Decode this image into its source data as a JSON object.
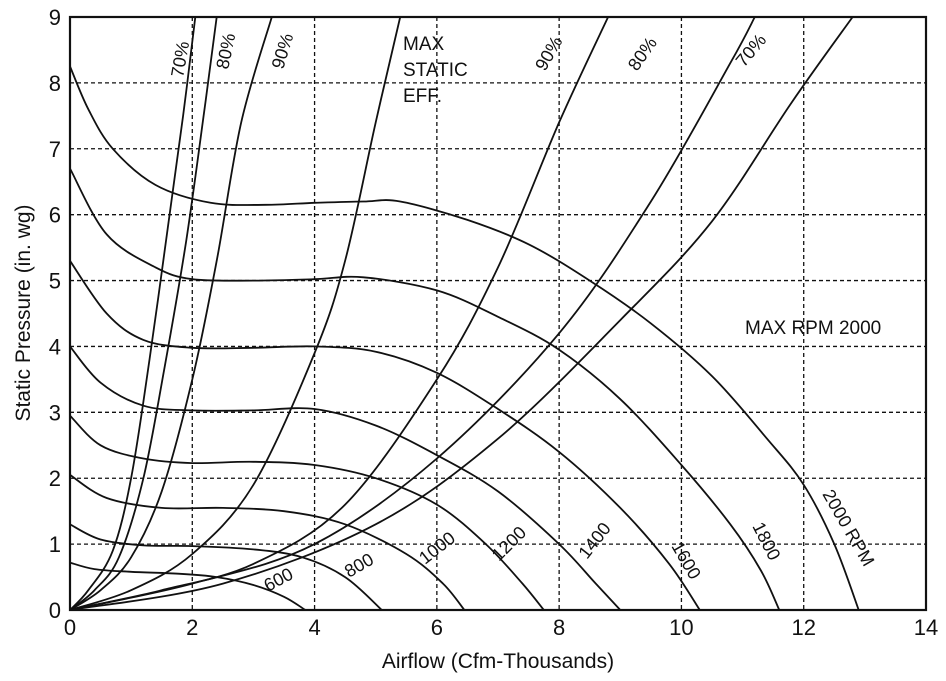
{
  "chart_data": {
    "type": "line",
    "xlabel": "Airflow (Cfm-Thousands)",
    "ylabel": "Static Pressure (in. wg)",
    "xlim": [
      0,
      14
    ],
    "ylim": [
      0,
      9
    ],
    "xticks": [
      "0",
      "2",
      "4",
      "6",
      "8",
      "10",
      "12",
      "14"
    ],
    "yticks": [
      "0",
      "1",
      "2",
      "3",
      "4",
      "5",
      "6",
      "7",
      "8",
      "9"
    ],
    "grid": true,
    "annotations": {
      "max_static_eff": [
        "MAX",
        "STATIC",
        "EFF."
      ],
      "max_rpm": "MAX RPM 2000"
    },
    "rpm_series": [
      {
        "name": "600",
        "points": [
          [
            0,
            0.72
          ],
          [
            0.4,
            0.62
          ],
          [
            1.0,
            0.58
          ],
          [
            1.8,
            0.55
          ],
          [
            2.4,
            0.5
          ],
          [
            3.0,
            0.38
          ],
          [
            3.5,
            0.2
          ],
          [
            3.85,
            0.0
          ]
        ]
      },
      {
        "name": "800",
        "points": [
          [
            0,
            1.3
          ],
          [
            0.5,
            1.07
          ],
          [
            1.2,
            0.98
          ],
          [
            2.0,
            0.97
          ],
          [
            3.0,
            0.92
          ],
          [
            3.8,
            0.8
          ],
          [
            4.5,
            0.5
          ],
          [
            5.1,
            0.0
          ]
        ]
      },
      {
        "name": "1000",
        "points": [
          [
            0,
            2.05
          ],
          [
            0.6,
            1.7
          ],
          [
            1.5,
            1.55
          ],
          [
            2.5,
            1.55
          ],
          [
            3.5,
            1.5
          ],
          [
            4.5,
            1.3
          ],
          [
            5.5,
            0.85
          ],
          [
            6.1,
            0.4
          ],
          [
            6.45,
            0.0
          ]
        ]
      },
      {
        "name": "1200",
        "points": [
          [
            0,
            2.95
          ],
          [
            0.5,
            2.5
          ],
          [
            1.2,
            2.3
          ],
          [
            2.0,
            2.23
          ],
          [
            3.0,
            2.25
          ],
          [
            4.0,
            2.2
          ],
          [
            5.0,
            2.0
          ],
          [
            6.0,
            1.6
          ],
          [
            6.8,
            1.0
          ],
          [
            7.4,
            0.4
          ],
          [
            7.75,
            0.0
          ]
        ]
      },
      {
        "name": "1400",
        "points": [
          [
            0,
            4.0
          ],
          [
            0.5,
            3.45
          ],
          [
            1.2,
            3.1
          ],
          [
            2.0,
            3.03
          ],
          [
            3.0,
            3.03
          ],
          [
            4.0,
            3.05
          ],
          [
            5.0,
            2.8
          ],
          [
            6.0,
            2.35
          ],
          [
            7.0,
            1.8
          ],
          [
            8.0,
            1.0
          ],
          [
            8.6,
            0.4
          ],
          [
            9.0,
            0.0
          ]
        ]
      },
      {
        "name": "1600",
        "points": [
          [
            0,
            5.3
          ],
          [
            0.6,
            4.5
          ],
          [
            1.2,
            4.1
          ],
          [
            2.0,
            3.98
          ],
          [
            3.0,
            3.98
          ],
          [
            4.0,
            4.0
          ],
          [
            5.0,
            3.92
          ],
          [
            6.0,
            3.6
          ],
          [
            7.0,
            3.05
          ],
          [
            8.0,
            2.4
          ],
          [
            9.0,
            1.55
          ],
          [
            9.8,
            0.7
          ],
          [
            10.3,
            0.0
          ]
        ]
      },
      {
        "name": "1800",
        "points": [
          [
            0,
            6.7
          ],
          [
            0.6,
            5.7
          ],
          [
            1.4,
            5.2
          ],
          [
            2.0,
            5.02
          ],
          [
            3.0,
            5.0
          ],
          [
            4.0,
            5.02
          ],
          [
            4.8,
            5.05
          ],
          [
            6.0,
            4.85
          ],
          [
            7.0,
            4.45
          ],
          [
            8.0,
            3.95
          ],
          [
            9.0,
            3.2
          ],
          [
            10.0,
            2.2
          ],
          [
            10.8,
            1.3
          ],
          [
            11.3,
            0.6
          ],
          [
            11.6,
            0.0
          ]
        ]
      },
      {
        "name": "2000 RPM",
        "points": [
          [
            0,
            8.25
          ],
          [
            0.3,
            7.6
          ],
          [
            0.7,
            7.0
          ],
          [
            1.4,
            6.45
          ],
          [
            2.3,
            6.18
          ],
          [
            3.2,
            6.15
          ],
          [
            4.0,
            6.18
          ],
          [
            4.8,
            6.2
          ],
          [
            5.4,
            6.2
          ],
          [
            6.5,
            5.92
          ],
          [
            7.5,
            5.55
          ],
          [
            8.5,
            5.0
          ],
          [
            9.5,
            4.35
          ],
          [
            10.5,
            3.55
          ],
          [
            11.4,
            2.6
          ],
          [
            12.0,
            1.9
          ],
          [
            12.5,
            1.0
          ],
          [
            12.9,
            0.0
          ]
        ]
      }
    ],
    "efficiency_series": [
      {
        "name": "70%",
        "points": [
          [
            0,
            0
          ],
          [
            0.3,
            0.3
          ],
          [
            0.7,
            0.9
          ],
          [
            1.0,
            2.0
          ],
          [
            1.3,
            3.8
          ],
          [
            1.6,
            5.8
          ],
          [
            1.85,
            7.5
          ],
          [
            2.05,
            9.0
          ]
        ]
      },
      {
        "name": "80%",
        "points": [
          [
            0,
            0
          ],
          [
            0.4,
            0.3
          ],
          [
            0.8,
            0.8
          ],
          [
            1.2,
            2.0
          ],
          [
            1.55,
            3.7
          ],
          [
            1.9,
            5.6
          ],
          [
            2.2,
            7.6
          ],
          [
            2.4,
            9.0
          ]
        ]
      },
      {
        "name": "90%",
        "points": [
          [
            0,
            0
          ],
          [
            0.5,
            0.3
          ],
          [
            1.0,
            0.8
          ],
          [
            1.5,
            1.8
          ],
          [
            2.0,
            3.5
          ],
          [
            2.4,
            5.3
          ],
          [
            2.8,
            7.4
          ],
          [
            3.3,
            9.0
          ]
        ]
      },
      {
        "name": "MAX STATIC EFF.",
        "points": [
          [
            0,
            0
          ],
          [
            1.0,
            0.3
          ],
          [
            2.0,
            0.85
          ],
          [
            3.0,
            1.9
          ],
          [
            4.0,
            3.9
          ],
          [
            4.5,
            5.3
          ],
          [
            5.0,
            7.4
          ],
          [
            5.4,
            9.0
          ]
        ]
      },
      {
        "name": "90%",
        "points": [
          [
            0,
            0
          ],
          [
            1.5,
            0.3
          ],
          [
            3.0,
            0.7
          ],
          [
            4.5,
            1.6
          ],
          [
            6.0,
            3.5
          ],
          [
            7.0,
            5.2
          ],
          [
            8.0,
            7.4
          ],
          [
            8.8,
            9.0
          ]
        ]
      },
      {
        "name": "80%",
        "points": [
          [
            0,
            0
          ],
          [
            2.0,
            0.4
          ],
          [
            4.0,
            1.0
          ],
          [
            6.0,
            2.3
          ],
          [
            8.0,
            4.2
          ],
          [
            9.5,
            6.2
          ],
          [
            10.8,
            8.3
          ],
          [
            11.2,
            9.0
          ]
        ]
      },
      {
        "name": "70%",
        "points": [
          [
            0,
            0
          ],
          [
            2.5,
            0.4
          ],
          [
            5.0,
            1.3
          ],
          [
            7.0,
            2.6
          ],
          [
            9.0,
            4.4
          ],
          [
            10.5,
            5.9
          ],
          [
            11.8,
            7.7
          ],
          [
            12.8,
            9.0
          ]
        ]
      }
    ],
    "rpm_labels": [
      "600",
      "800",
      "1000",
      "1200",
      "1400",
      "1600",
      "1800",
      "2000 RPM"
    ],
    "eff_labels": [
      "70%",
      "80%",
      "90%",
      "90%",
      "80%",
      "70%"
    ]
  }
}
